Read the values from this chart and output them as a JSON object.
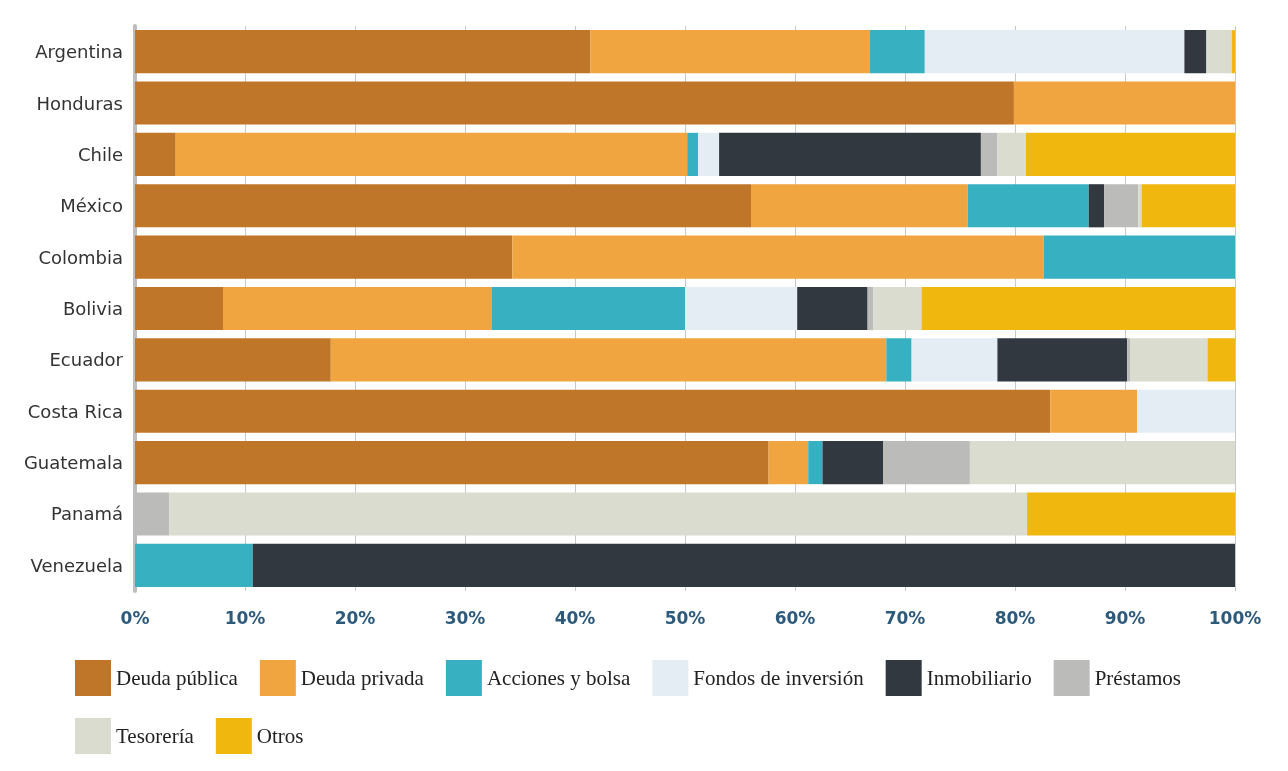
{
  "chart_data": {
    "type": "bar",
    "orientation": "horizontal",
    "stacked": true,
    "grid": "x",
    "legend": "bottom",
    "categories": [
      "Argentina",
      "Honduras",
      "Chile",
      "México",
      "Colombia",
      "Bolivia",
      "Ecuador",
      "Costa Rica",
      "Guatemala",
      "Panamá",
      "Venezuela"
    ],
    "xlim": [
      0,
      100
    ],
    "xticks": [
      {
        "value": 0,
        "label": "0%"
      },
      {
        "value": 10,
        "label": "10%"
      },
      {
        "value": 20,
        "label": "20%"
      },
      {
        "value": 30,
        "label": "30%"
      },
      {
        "value": 40,
        "label": "40%"
      },
      {
        "value": 50,
        "label": "50%"
      },
      {
        "value": 60,
        "label": "60%"
      },
      {
        "value": 70,
        "label": "70%"
      },
      {
        "value": 80,
        "label": "80%"
      },
      {
        "value": 90,
        "label": "90%"
      },
      {
        "value": 100,
        "label": "100%"
      }
    ],
    "series": [
      {
        "name": "Deuda pública",
        "color": "#c07628",
        "values": [
          41.4,
          79.9,
          3.7,
          56.0,
          34.3,
          8.0,
          17.8,
          83.2,
          57.6,
          0,
          0
        ]
      },
      {
        "name": "Deuda privada",
        "color": "#f0a541",
        "values": [
          25.4,
          20.1,
          46.5,
          19.7,
          48.3,
          24.4,
          50.5,
          7.9,
          3.6,
          0,
          0
        ]
      },
      {
        "name": "Acciones y bolsa",
        "color": "#37b1c1",
        "values": [
          5.0,
          0,
          1.0,
          11.0,
          17.4,
          17.6,
          2.3,
          0,
          1.3,
          0,
          10.7
        ]
      },
      {
        "name": "Fondos de inversión",
        "color": "#e5edf4",
        "values": [
          23.6,
          0,
          1.9,
          0,
          0,
          10.2,
          7.8,
          8.9,
          0,
          0,
          0
        ]
      },
      {
        "name": "Inmobiliario",
        "color": "#313840",
        "values": [
          2.0,
          0,
          23.8,
          1.4,
          0,
          6.4,
          11.8,
          0,
          5.5,
          0,
          89.3
        ]
      },
      {
        "name": "Préstamos",
        "color": "#bbbbb9",
        "values": [
          null,
          0,
          1.5,
          3.1,
          0,
          0.5,
          0.3,
          0,
          7.9,
          3.1,
          0
        ]
      },
      {
        "name": "Tesorería",
        "color": "#dadccf",
        "values": [
          2.3,
          0,
          2.6,
          0.3,
          0,
          4.4,
          7.0,
          0,
          24.1,
          78.0,
          0
        ]
      },
      {
        "name": "Otros",
        "color": "#f0b70e",
        "values": [
          0.3,
          0,
          19.0,
          8.5,
          0,
          28.5,
          2.5,
          0,
          0,
          18.9,
          0
        ]
      }
    ]
  }
}
